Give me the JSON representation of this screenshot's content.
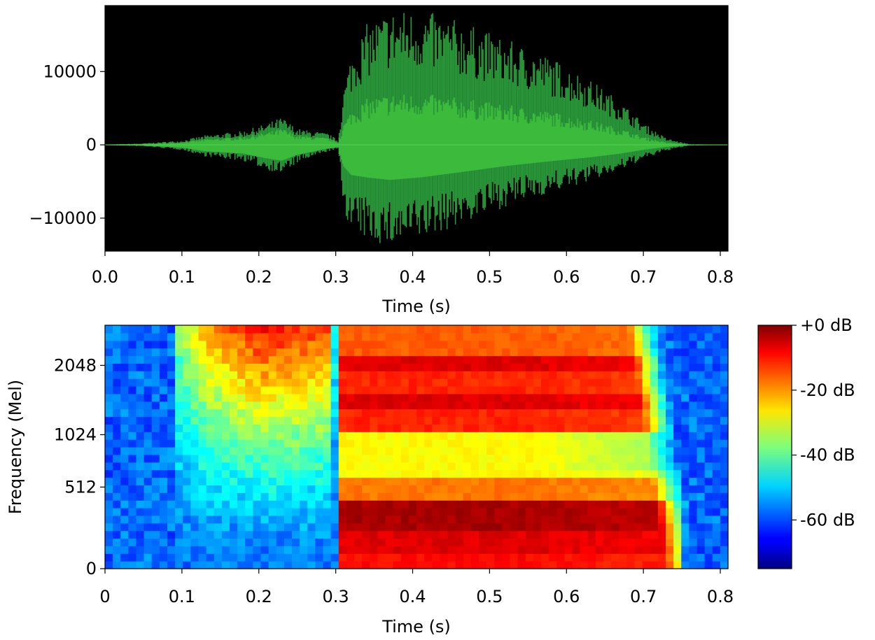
{
  "chart_data": [
    {
      "type": "line",
      "title": "",
      "xlabel": "Time (s)",
      "ylabel": "",
      "xlim": [
        0.0,
        0.81
      ],
      "ylim": [
        -14500,
        19000
      ],
      "x_ticks": [
        "0.0",
        "0.1",
        "0.2",
        "0.3",
        "0.4",
        "0.5",
        "0.6",
        "0.7",
        "0.8"
      ],
      "y_ticks": [
        {
          "value": 10000,
          "label": "10000"
        },
        {
          "value": 0,
          "label": "0"
        },
        {
          "value": -10000,
          "label": "−10000"
        }
      ],
      "background": "#000000",
      "line_color": "#3cba3c",
      "envelope": [
        {
          "t": 0.0,
          "max": 50,
          "min": -50
        },
        {
          "t": 0.05,
          "max": 200,
          "min": -200
        },
        {
          "t": 0.1,
          "max": 600,
          "min": -700
        },
        {
          "t": 0.13,
          "max": 1300,
          "min": -1600
        },
        {
          "t": 0.18,
          "max": 1900,
          "min": -2200
        },
        {
          "t": 0.21,
          "max": 2900,
          "min": -3400
        },
        {
          "t": 0.23,
          "max": 3800,
          "min": -4000
        },
        {
          "t": 0.25,
          "max": 2200,
          "min": -2500
        },
        {
          "t": 0.29,
          "max": 1600,
          "min": -900
        },
        {
          "t": 0.303,
          "max": 600,
          "min": -600
        },
        {
          "t": 0.31,
          "max": 7500,
          "min": -8500
        },
        {
          "t": 0.32,
          "max": 12500,
          "min": -12000
        },
        {
          "t": 0.34,
          "max": 16500,
          "min": -13000
        },
        {
          "t": 0.37,
          "max": 18500,
          "min": -14000
        },
        {
          "t": 0.41,
          "max": 18500,
          "min": -13000
        },
        {
          "t": 0.46,
          "max": 17000,
          "min": -11000
        },
        {
          "t": 0.52,
          "max": 14500,
          "min": -8500
        },
        {
          "t": 0.58,
          "max": 12000,
          "min": -6500
        },
        {
          "t": 0.63,
          "max": 9000,
          "min": -5000
        },
        {
          "t": 0.67,
          "max": 6000,
          "min": -3500
        },
        {
          "t": 0.7,
          "max": 3000,
          "min": -2000
        },
        {
          "t": 0.73,
          "max": 900,
          "min": -800
        },
        {
          "t": 0.76,
          "max": 100,
          "min": -100
        },
        {
          "t": 0.81,
          "max": 20,
          "min": -20
        }
      ]
    },
    {
      "type": "heatmap",
      "title": "",
      "xlabel": "Time (s)",
      "ylabel": "Frequency (Mel)",
      "xlim": [
        0,
        0.81
      ],
      "x_ticks": [
        "0",
        "0.1",
        "0.2",
        "0.3",
        "0.4",
        "0.5",
        "0.6",
        "0.7",
        "0.8"
      ],
      "y_ticks": [
        {
          "value": 0,
          "label": "0"
        },
        {
          "value": 512,
          "label": "512"
        },
        {
          "value": 1024,
          "label": "1024"
        },
        {
          "value": 2048,
          "label": "2048"
        }
      ],
      "colorbar": {
        "colormap": "jet",
        "range_db": [
          -75,
          0
        ],
        "ticks": [
          {
            "value": 0,
            "label": "+0 dB"
          },
          {
            "value": -20,
            "label": "-20 dB"
          },
          {
            "value": -40,
            "label": "-40 dB"
          },
          {
            "value": -60,
            "label": "-60 dB"
          }
        ]
      },
      "cols": 80,
      "rows": 32,
      "noise_db": -58,
      "high_band_db": [
        {
          "t": 0.09,
          "db": -40
        },
        {
          "t": 0.13,
          "db": -22
        },
        {
          "t": 0.2,
          "db": -10
        },
        {
          "t": 0.29,
          "db": -15
        },
        {
          "t": 0.3,
          "db": -50
        }
      ],
      "voiced_segment": {
        "start": 0.307,
        "end_low": 0.73,
        "end_high": 0.68
      },
      "formant_bands_db": [
        {
          "row_from": 0,
          "row_to": 1,
          "db": -10
        },
        {
          "row_from": 2,
          "row_to": 4,
          "db": -7
        },
        {
          "row_from": 5,
          "row_to": 8,
          "db": -3
        },
        {
          "row_from": 9,
          "row_to": 11,
          "db": -18
        },
        {
          "row_from": 12,
          "row_to": 17,
          "db": -28
        },
        {
          "row_from": 18,
          "row_to": 20,
          "db": -12
        },
        {
          "row_from": 21,
          "row_to": 22,
          "db": -7
        },
        {
          "row_from": 23,
          "row_to": 25,
          "db": -12
        },
        {
          "row_from": 26,
          "row_to": 27,
          "db": -7
        },
        {
          "row_from": 28,
          "row_to": 31,
          "db": -16
        }
      ]
    }
  ]
}
